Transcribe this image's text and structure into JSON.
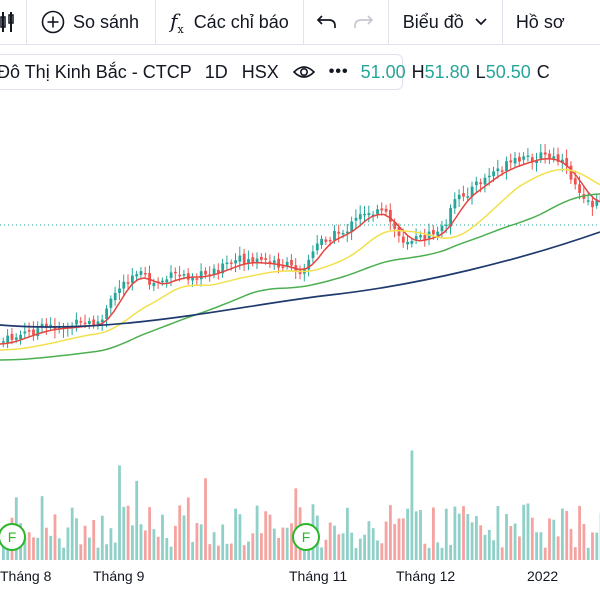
{
  "toolbar": {
    "compare_label": "So sánh",
    "indicators_label": "Các chỉ báo",
    "chart_type_label": "Biểu đồ",
    "profile_label": "Hồ sơ"
  },
  "legend": {
    "symbol": "Đô Thị Kinh Bắc - CTCP",
    "interval": "1D",
    "exchange": "HSX",
    "open_value": "51.00",
    "high_label": "H",
    "high_value": "51.80",
    "low_label": "L",
    "low_value": "50.50",
    "close_label": "C",
    "value_color": "#26a69a"
  },
  "x_axis": {
    "labels": [
      "Tháng 8",
      "Tháng 9",
      "Tháng 11",
      "Tháng 12",
      "2022"
    ]
  },
  "markers": {
    "dividend_label": "F"
  },
  "colors": {
    "up": "#26a69a",
    "down": "#ef5350",
    "vol_up": "#8fd0c8",
    "vol_down": "#f4a3a0",
    "ma_red": "#e5443f",
    "ma_yellow": "#f2e14c",
    "ma_green": "#4caf50",
    "ma_navy": "#1e3a6e"
  }
}
